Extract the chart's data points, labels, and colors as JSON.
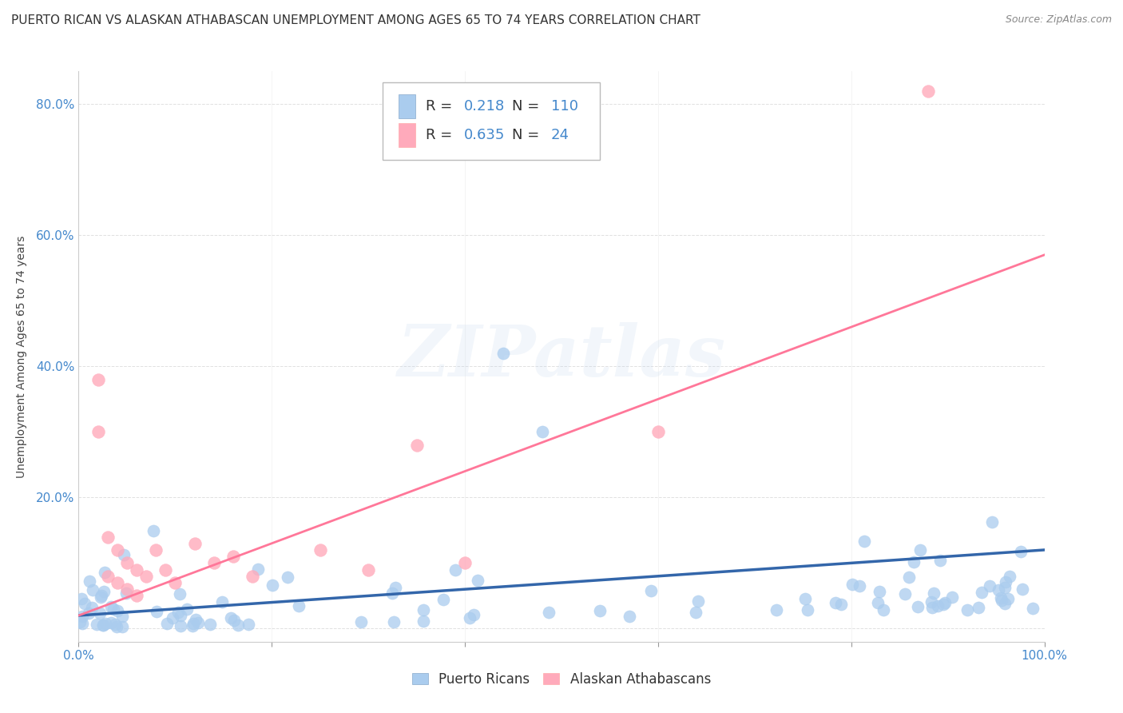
{
  "title": "PUERTO RICAN VS ALASKAN ATHABASCAN UNEMPLOYMENT AMONG AGES 65 TO 74 YEARS CORRELATION CHART",
  "source": "Source: ZipAtlas.com",
  "ylabel": "Unemployment Among Ages 65 to 74 years",
  "xlim": [
    0,
    1.0
  ],
  "ylim": [
    -0.02,
    0.85
  ],
  "xticks": [
    0.0,
    0.2,
    0.4,
    0.6,
    0.8,
    1.0
  ],
  "yticks": [
    0.0,
    0.2,
    0.4,
    0.6,
    0.8
  ],
  "xticklabels": [
    "0.0%",
    "",
    "",
    "",
    "",
    "100.0%"
  ],
  "yticklabels": [
    "",
    "20.0%",
    "40.0%",
    "60.0%",
    "80.0%"
  ],
  "blue_color": "#AACCEE",
  "pink_color": "#FFAABB",
  "blue_line_color": "#3366AA",
  "pink_line_color": "#FF7799",
  "tick_color": "#4488CC",
  "R_blue": 0.218,
  "N_blue": 110,
  "R_pink": 0.635,
  "N_pink": 24,
  "legend_label_blue": "Puerto Ricans",
  "legend_label_pink": "Alaskan Athabascans",
  "watermark": "ZIPatlas",
  "title_fontsize": 11,
  "axis_label_fontsize": 10,
  "tick_fontsize": 11,
  "blue_line_slope": 0.1,
  "blue_line_intercept": 0.02,
  "pink_line_slope": 0.55,
  "pink_line_intercept": 0.02
}
